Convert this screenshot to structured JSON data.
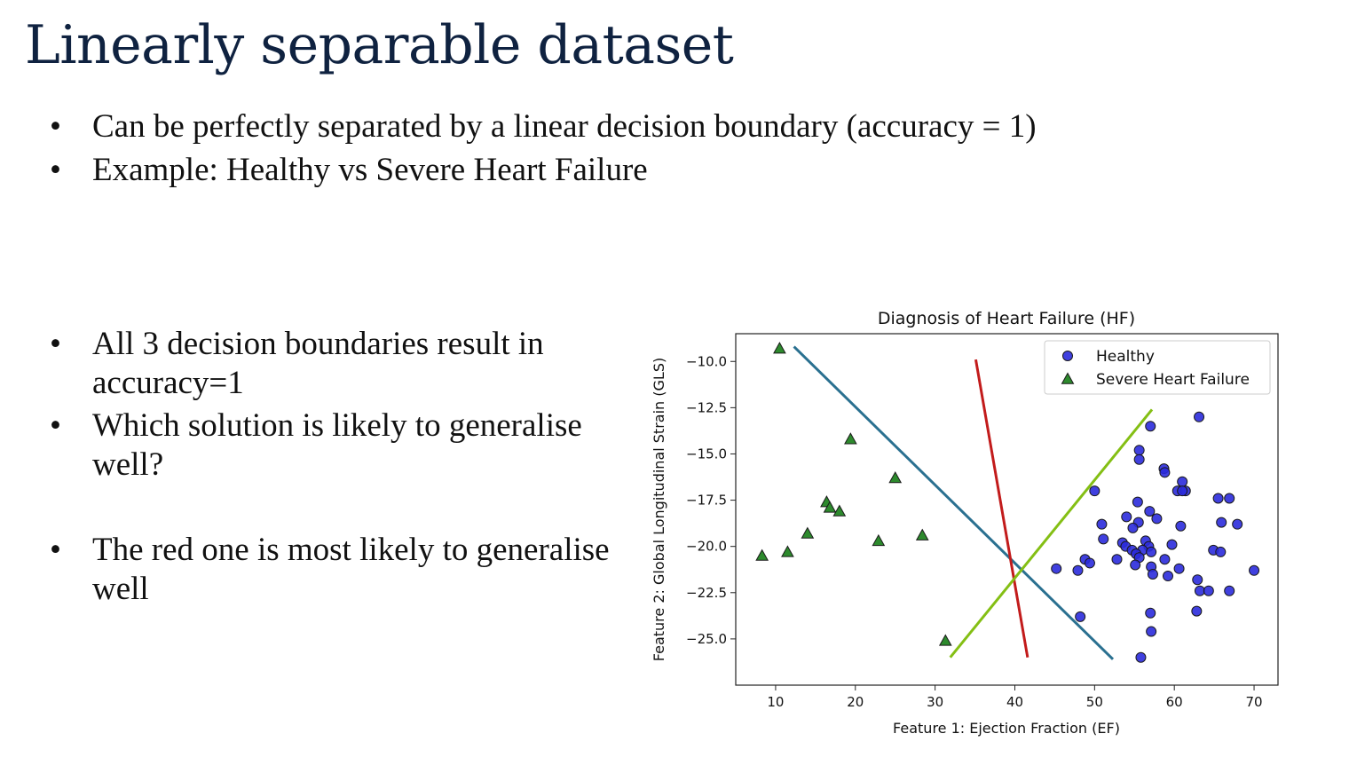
{
  "slide": {
    "title": "Linearly separable dataset",
    "top_bullets": [
      "Can be perfectly separated by a linear decision boundary (accuracy = 1)",
      "Example: Healthy vs Severe Heart Failure"
    ],
    "mid_bullets": [
      "All 3 decision boundaries result in accuracy=1",
      "Which solution is likely to generalise well?",
      "The red one is most likely to generalise well"
    ],
    "bullet_glyph": "•"
  },
  "chart_data": {
    "type": "scatter",
    "title": "Diagnosis of Heart Failure (HF)",
    "xlabel": "Feature 1: Ejection Fraction (EF)",
    "ylabel": "Feature 2: Global Longitudinal Strain (GLS)",
    "xlim": [
      5,
      73
    ],
    "ylim": [
      -27.5,
      -8.5
    ],
    "xticks": [
      10,
      20,
      30,
      40,
      50,
      60,
      70
    ],
    "yticks": [
      -10.0,
      -12.5,
      -15.0,
      -17.5,
      -20.0,
      -22.5,
      -25.0
    ],
    "grid": false,
    "legend_placement": "top-right",
    "series": [
      {
        "name": "Healthy",
        "marker": "circle",
        "color": "#2b2bdc",
        "points": [
          [
            63.1,
            -13.0
          ],
          [
            57.0,
            -13.5
          ],
          [
            55.6,
            -14.8
          ],
          [
            55.6,
            -15.3
          ],
          [
            58.7,
            -15.8
          ],
          [
            58.8,
            -16.0
          ],
          [
            61.0,
            -16.5
          ],
          [
            60.4,
            -17.0
          ],
          [
            61.4,
            -17.0
          ],
          [
            61.0,
            -17.0
          ],
          [
            50.0,
            -17.0
          ],
          [
            65.5,
            -17.4
          ],
          [
            66.9,
            -17.4
          ],
          [
            55.4,
            -17.6
          ],
          [
            56.9,
            -18.1
          ],
          [
            54.0,
            -18.4
          ],
          [
            57.8,
            -18.5
          ],
          [
            55.5,
            -18.7
          ],
          [
            50.9,
            -18.8
          ],
          [
            54.8,
            -19.0
          ],
          [
            60.8,
            -18.9
          ],
          [
            65.9,
            -18.7
          ],
          [
            67.9,
            -18.8
          ],
          [
            51.1,
            -19.6
          ],
          [
            53.5,
            -19.8
          ],
          [
            56.4,
            -19.7
          ],
          [
            53.9,
            -20.0
          ],
          [
            56.8,
            -20.0
          ],
          [
            59.7,
            -19.9
          ],
          [
            54.7,
            -20.2
          ],
          [
            56.0,
            -20.2
          ],
          [
            55.2,
            -20.4
          ],
          [
            57.1,
            -20.3
          ],
          [
            64.9,
            -20.2
          ],
          [
            65.8,
            -20.3
          ],
          [
            48.8,
            -20.7
          ],
          [
            52.8,
            -20.7
          ],
          [
            55.6,
            -20.6
          ],
          [
            58.8,
            -20.7
          ],
          [
            55.1,
            -21.0
          ],
          [
            57.1,
            -21.1
          ],
          [
            47.9,
            -21.3
          ],
          [
            45.2,
            -21.2
          ],
          [
            60.6,
            -21.2
          ],
          [
            57.3,
            -21.5
          ],
          [
            49.4,
            -20.9
          ],
          [
            59.2,
            -21.6
          ],
          [
            62.9,
            -21.8
          ],
          [
            63.2,
            -22.4
          ],
          [
            64.3,
            -22.4
          ],
          [
            66.9,
            -22.4
          ],
          [
            70.0,
            -21.3
          ],
          [
            48.2,
            -23.8
          ],
          [
            62.8,
            -23.5
          ],
          [
            57.0,
            -23.6
          ],
          [
            57.1,
            -24.6
          ],
          [
            55.8,
            -26.0
          ]
        ]
      },
      {
        "name": "Severe Heart Failure",
        "marker": "triangle",
        "color": "#2d8a2d",
        "points": [
          [
            10.5,
            -9.3
          ],
          [
            19.4,
            -14.2
          ],
          [
            25.0,
            -16.3
          ],
          [
            16.4,
            -17.6
          ],
          [
            16.8,
            -17.9
          ],
          [
            18.0,
            -18.1
          ],
          [
            14.0,
            -19.3
          ],
          [
            22.9,
            -19.7
          ],
          [
            28.4,
            -19.4
          ],
          [
            8.3,
            -20.5
          ],
          [
            11.5,
            -20.3
          ],
          [
            31.3,
            -25.1
          ]
        ]
      }
    ],
    "lines": [
      {
        "name": "blue",
        "color": "#2a7090",
        "from": [
          12.3,
          -9.2
        ],
        "to": [
          52.3,
          -26.1
        ]
      },
      {
        "name": "red",
        "color": "#c21b1b",
        "from": [
          35.1,
          -9.9
        ],
        "to": [
          41.6,
          -26.0
        ]
      },
      {
        "name": "green",
        "color": "#84bf14",
        "from": [
          31.9,
          -26.0
        ],
        "to": [
          57.2,
          -12.6
        ]
      }
    ]
  }
}
